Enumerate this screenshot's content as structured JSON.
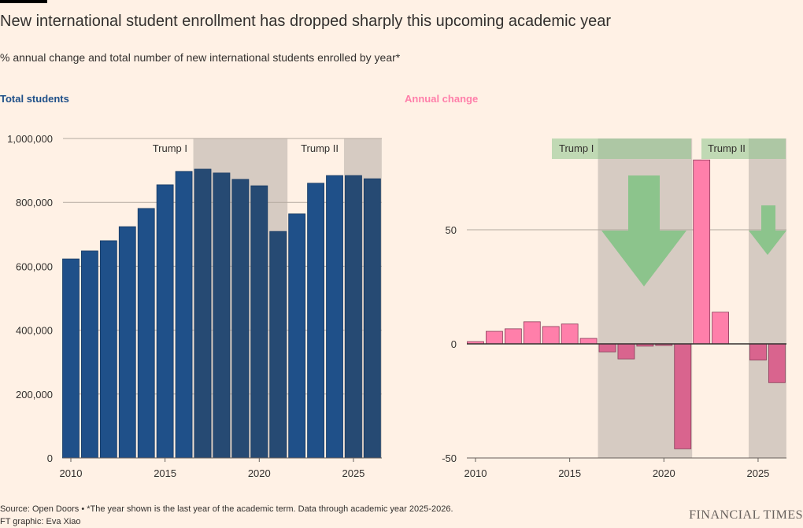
{
  "header": {
    "title": "New international student enrollment has dropped sharply this upcoming academic year",
    "subtitle": "% annual change and total number of new international students enrolled by year*"
  },
  "footer": {
    "source": "Source: Open Doors • *The year shown is the last year of the academic term. Data through academic year 2025-2026.",
    "credit": "FT graphic: Eva Xiao",
    "logo": "FINANCIAL TIMES"
  },
  "colors": {
    "background": "#fff1e5",
    "total": "#1f5089",
    "total_shaded": "#264a73",
    "positive": "#ff7faa",
    "negative": "#d9648e",
    "shade": "#d6cbc2",
    "annotation": "#8cc48c"
  },
  "chart_data": [
    {
      "type": "bar",
      "title": "Total students",
      "x": [
        2010,
        2011,
        2012,
        2013,
        2014,
        2015,
        2016,
        2017,
        2018,
        2019,
        2020,
        2021,
        2022,
        2023,
        2024,
        2025,
        2026
      ],
      "values": [
        623000,
        648000,
        680000,
        724000,
        781000,
        855000,
        897000,
        904000,
        892000,
        872000,
        852000,
        709000,
        764000,
        860000,
        884000,
        884000,
        874000
      ],
      "ylim": [
        0,
        1000000
      ],
      "yticks": [
        0,
        200000,
        400000,
        600000,
        800000,
        1000000
      ],
      "ytick_labels": [
        "0",
        "200,000",
        "400,000",
        "600,000",
        "800,000",
        "1,000,000"
      ],
      "xticks": [
        2010,
        2015,
        2020,
        2025
      ],
      "grid": true,
      "shaded_periods": [
        {
          "label": "Trump I",
          "from": 2016.5,
          "to": 2021.5
        },
        {
          "label": "Trump II",
          "from": 2024.5,
          "to": 2026.5
        }
      ]
    },
    {
      "type": "bar",
      "title": "Annual change",
      "x": [
        2010,
        2011,
        2012,
        2013,
        2014,
        2015,
        2016,
        2017,
        2018,
        2019,
        2020,
        2021,
        2022,
        2023,
        2024,
        2025,
        2026
      ],
      "values": [
        1,
        5.5,
        6.6,
        9.7,
        7.6,
        8.7,
        2.4,
        -3.5,
        -6.6,
        -1,
        -0.7,
        -46,
        80.6,
        13.9,
        0,
        -7.1,
        -17
      ],
      "ylim": [
        -50,
        90
      ],
      "yticks": [
        -50,
        0,
        50
      ],
      "ytick_labels": [
        "-50",
        "0",
        "50"
      ],
      "xticks": [
        2010,
        2015,
        2020,
        2025
      ],
      "grid": true,
      "shaded_periods": [
        {
          "label": "Trump I",
          "from": 2016.5,
          "to": 2021.5
        },
        {
          "label": "Trump II",
          "from": 2024.5,
          "to": 2026.5
        }
      ],
      "annotations": [
        "down-arrow-icon",
        "down-arrow-icon"
      ]
    }
  ]
}
